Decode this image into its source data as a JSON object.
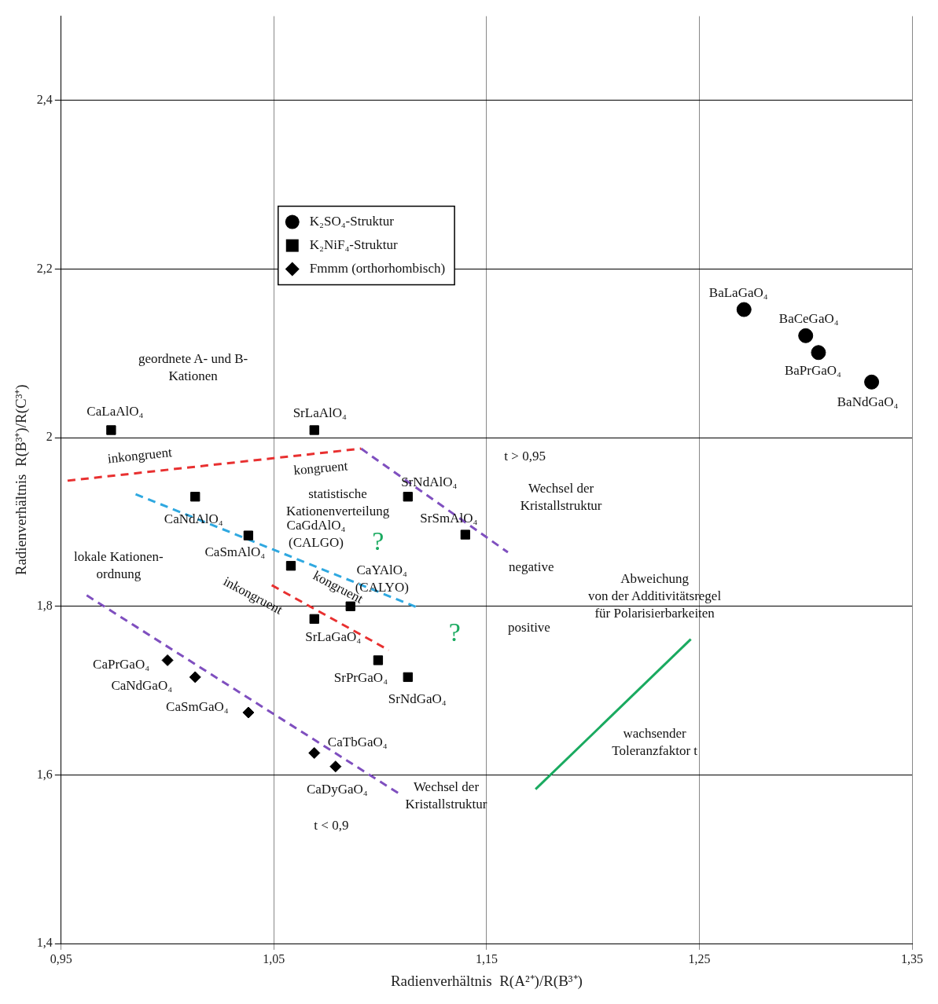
{
  "chart_data": {
    "type": "scatter",
    "xlabel": "Radienverhältnis  R(A²⁺)/R(B³⁺)",
    "ylabel": "Radienverhältnis  R(B³⁺)/R(C³⁺)",
    "xlim": [
      0.95,
      1.35
    ],
    "ylim": [
      1.4,
      2.5
    ],
    "xticks": [
      {
        "value": 0.95,
        "label": "0,95"
      },
      {
        "value": 1.05,
        "label": "1,05"
      },
      {
        "value": 1.15,
        "label": "1,15"
      },
      {
        "value": 1.25,
        "label": "1,25"
      },
      {
        "value": 1.35,
        "label": "1,35"
      }
    ],
    "yticks": [
      {
        "value": 1.4,
        "label": "1,4"
      },
      {
        "value": 1.6,
        "label": "1,6"
      },
      {
        "value": 1.8,
        "label": "1,8"
      },
      {
        "value": 2.0,
        "label": "2"
      },
      {
        "value": 2.2,
        "label": "2,2"
      },
      {
        "value": 2.4,
        "label": "2,4"
      }
    ],
    "grid": true,
    "legend": "top left",
    "series": [
      {
        "name": "K₂SO₄-Struktur",
        "color": "#000000",
        "marker": "circle",
        "x": [
          1.271,
          1.3,
          1.306,
          1.331
        ],
        "values": [
          2.152,
          2.121,
          2.101,
          2.066
        ]
      },
      {
        "name": "K₂NiF₄-Struktur",
        "color": "#000000",
        "marker": "square",
        "x": [
          0.9735,
          1.069,
          1.013,
          1.038,
          1.058,
          1.086,
          1.069,
          1.099,
          1.113,
          1.113,
          1.14
        ],
        "values": [
          2.009,
          2.009,
          1.93,
          1.884,
          1.848,
          1.8,
          1.785,
          1.736,
          1.716,
          1.93,
          1.885
        ]
      },
      {
        "name": "Fmmm (orthorhombisch)",
        "color": "#000000",
        "marker": "diamond",
        "x": [
          1.0,
          1.013,
          1.038,
          1.069,
          1.079
        ],
        "values": [
          1.736,
          1.716,
          1.674,
          1.626,
          1.61
        ]
      },
      {
        "type": "line",
        "color": "#e83030",
        "marker": "none",
        "line_style": "dashed",
        "x": [
          0.953,
          1.091
        ],
        "values": [
          1.949,
          1.987
        ]
      },
      {
        "type": "line",
        "color": "#7f4fbf",
        "marker": "none",
        "line_style": "dashed",
        "x": [
          1.091,
          1.16
        ],
        "values": [
          1.987,
          1.864
        ]
      },
      {
        "type": "line",
        "color": "#2fa8e0",
        "marker": "none",
        "line_style": "dashed",
        "x": [
          0.985,
          1.117
        ],
        "values": [
          1.933,
          1.799
        ]
      },
      {
        "type": "line",
        "color": "#e83030",
        "marker": "none",
        "line_style": "dashed",
        "x": [
          1.049,
          1.104
        ],
        "values": [
          1.825,
          1.748
        ]
      },
      {
        "type": "line",
        "color": "#7f4fbf",
        "marker": "none",
        "line_style": "dashed",
        "x": [
          0.962,
          1.11
        ],
        "values": [
          1.813,
          1.576
        ]
      },
      {
        "type": "line",
        "color": "#1aaa60",
        "marker": "none",
        "line_style": "solid",
        "x": [
          1.173,
          1.246
        ],
        "values": [
          1.583,
          1.761
        ]
      }
    ],
    "annotations": [
      {
        "text": "CaLaAlO₄",
        "x": 0.9735,
        "y": 2.009
      },
      {
        "text": "SrLaAlO₄",
        "x": 1.069,
        "y": 2.009
      },
      {
        "text": "BaLaGaO₄",
        "x": 1.271,
        "y": 2.152
      },
      {
        "text": "BaCeGaO₄",
        "x": 1.3,
        "y": 2.121
      },
      {
        "text": "BaPrGaO₄",
        "x": 1.306,
        "y": 2.101
      },
      {
        "text": "BaNdGaO₄",
        "x": 1.331,
        "y": 2.066
      },
      {
        "text": "SrNdAlO₄",
        "x": 1.113,
        "y": 1.93
      },
      {
        "text": "SrSmAlO₄",
        "x": 1.14,
        "y": 1.885
      },
      {
        "text": "CaNdAlO₄",
        "x": 1.013,
        "y": 1.93
      },
      {
        "text": "CaSmAlO₄",
        "x": 1.038,
        "y": 1.884
      },
      {
        "text": "CaGdAlO₄\n(CALGO)",
        "x": 1.058,
        "y": 1.848
      },
      {
        "text": "CaYAlO₄\n(CALYO)",
        "x": 1.086,
        "y": 1.8
      },
      {
        "text": "SrLaGaO₄",
        "x": 1.069,
        "y": 1.785
      },
      {
        "text": "SrPrGaO₄",
        "x": 1.099,
        "y": 1.736
      },
      {
        "text": "SrNdGaO₄",
        "x": 1.113,
        "y": 1.716
      },
      {
        "text": "CaPrGaO₄",
        "x": 1.0,
        "y": 1.736
      },
      {
        "text": "CaNdGaO₄",
        "x": 1.013,
        "y": 1.716
      },
      {
        "text": "CaSmGaO₄",
        "x": 1.038,
        "y": 1.674
      },
      {
        "text": "CaTbGaO₄",
        "x": 1.069,
        "y": 1.626
      },
      {
        "text": "CaDyGaO₄",
        "x": 1.079,
        "y": 1.61
      },
      "geordnete A- und B-\nKationen",
      "inkongruent",
      "kongruent",
      "statistische\nKationenverteilung",
      "?",
      "?",
      "lokale Kationen-\nordnung",
      "inkongruent",
      "kongruent",
      "t > 0,95",
      "Wechsel der\nKristallstruktur",
      "negative",
      "positive",
      "Abweichung\nvon der Additivitätsregel\nfür Polarisierbarkeiten",
      "wachsender\nToleranzfaktor t",
      "Wechsel der\nKristallstruktur",
      "t < 0,9"
    ]
  }
}
